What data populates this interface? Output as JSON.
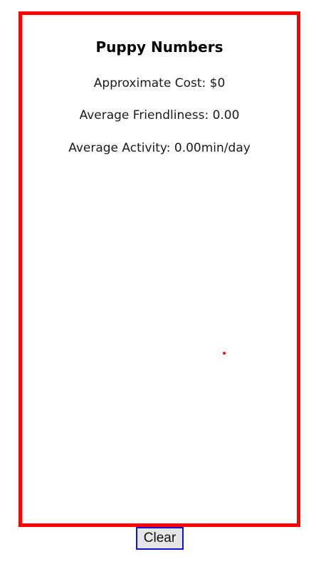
{
  "panel": {
    "title": "Puppy Numbers",
    "stats": {
      "cost": "Approximate Cost: $0",
      "friendliness": "Average Friendliness: 0.00",
      "activity": "Average Activity: 0.00min/day"
    },
    "border_color": "#ff0000"
  },
  "controls": {
    "clear_label": "Clear"
  }
}
